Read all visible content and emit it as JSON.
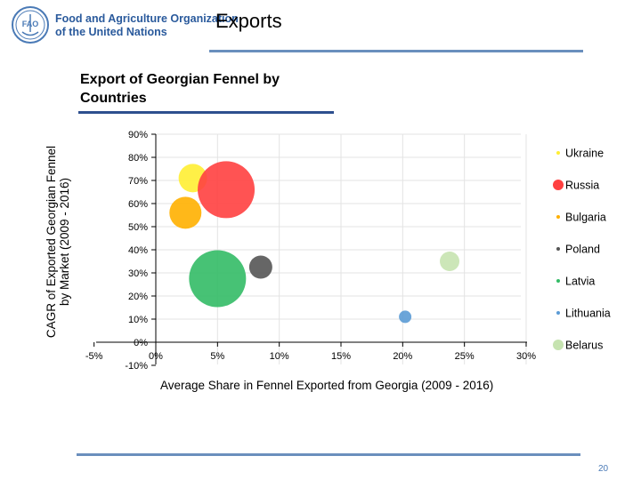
{
  "header": {
    "org_line1": "Food and Agriculture Organization",
    "org_line2": "of the United Nations",
    "logo_text": "FAO",
    "title": "Exports",
    "page_number": "20"
  },
  "colors": {
    "accent": "#6a8fbd",
    "title_rule": "#2d4f8e",
    "org_text": "#2a5a9c"
  },
  "chart_data": {
    "type": "bubble",
    "title_line1": "Export of Georgian Fennel by",
    "title_line2": "Countries",
    "xlabel": "Average Share in Fennel Exported from Georgia (2009 - 2016)",
    "ylabel_line1": "CAGR of Exported Georgian Fennel",
    "ylabel_line2": "by Market (2009 - 2016)",
    "xlim": [
      -5,
      30
    ],
    "ylim": [
      -10,
      90
    ],
    "x_ticks": [
      -5,
      0,
      5,
      10,
      15,
      20,
      25,
      30
    ],
    "x_tick_labels": [
      "-5%",
      "0%",
      "5%",
      "10%",
      "15%",
      "20%",
      "25%",
      "30%"
    ],
    "y_ticks": [
      -10,
      0,
      10,
      20,
      30,
      40,
      50,
      60,
      70,
      80,
      90
    ],
    "y_tick_labels": [
      "-10%",
      "0%",
      "10%",
      "20%",
      "30%",
      "40%",
      "50%",
      "60%",
      "70%",
      "80%",
      "90%"
    ],
    "grid": true,
    "legend_position": "right",
    "series": [
      {
        "name": "Ukraine",
        "x": 3.0,
        "y": 71,
        "size": 16,
        "color": "#ffee33",
        "legend_marker": "small"
      },
      {
        "name": "Russia",
        "x": 5.7,
        "y": 66,
        "size": 32,
        "color": "#ff4040",
        "legend_marker": "large"
      },
      {
        "name": "Bulgaria",
        "x": 2.4,
        "y": 56,
        "size": 18,
        "color": "#ffb000",
        "legend_marker": "small"
      },
      {
        "name": "Poland",
        "x": 8.5,
        "y": 32.5,
        "size": 13,
        "color": "#555555",
        "legend_marker": "small"
      },
      {
        "name": "Latvia",
        "x": 5.0,
        "y": 27.5,
        "size": 32,
        "color": "#33bb66",
        "legend_marker": "small"
      },
      {
        "name": "Lithuania",
        "x": 20.2,
        "y": 11,
        "size": 7,
        "color": "#5b9bd5",
        "legend_marker": "small"
      },
      {
        "name": "Belarus",
        "x": 23.8,
        "y": 35,
        "size": 11,
        "color": "#c6e3b0",
        "legend_marker": "medium"
      }
    ]
  }
}
